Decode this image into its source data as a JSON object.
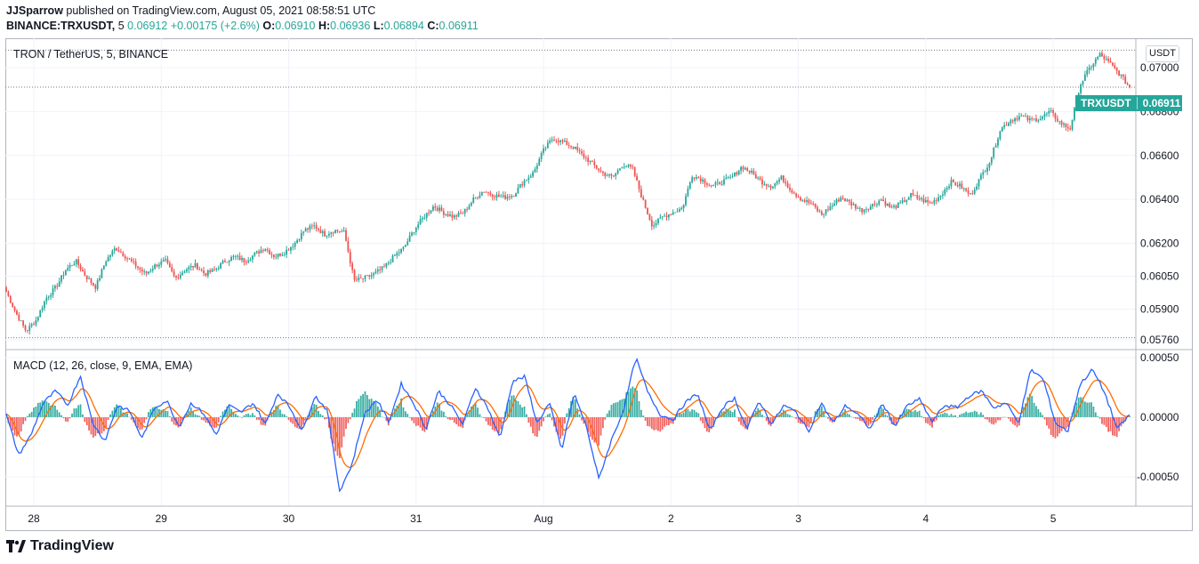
{
  "header": {
    "author": "JJSparrow",
    "published_text": "published on TradingView.com, August 05, 2021 08:58:51 UTC",
    "symbol": "BINANCE:TRXUSDT",
    "interval": "5",
    "last": "0.06912",
    "change": "+0.00175 (+2.6%)",
    "o_label": "O:",
    "o_value": "0.06910",
    "h_label": "H:",
    "h_value": "0.06936",
    "l_label": "L:",
    "l_value": "0.06894",
    "c_label": "C:",
    "c_value": "0.06911"
  },
  "brand": {
    "name": "TradingView",
    "icon": "tradingview-logo-icon"
  },
  "currency_button": "USDT",
  "price_tag": {
    "symbol": "TRXUSDT",
    "value": "0.06911"
  },
  "colors": {
    "up": "#26a69a",
    "down": "#ef5350",
    "macd": "#2962ff",
    "signal": "#ff6d00"
  },
  "chart_data": [
    {
      "type": "candlestick",
      "title": "TRON / TetherUS, 5, BINANCE",
      "y_ticks": [
        "0.07000",
        "0.06800",
        "0.06600",
        "0.06400",
        "0.06200",
        "0.06050",
        "0.05900",
        "0.05760"
      ],
      "y_tick_values": [
        0.07,
        0.068,
        0.066,
        0.064,
        0.062,
        0.0605,
        0.059,
        0.0576
      ],
      "ylim": [
        0.0572,
        0.0713
      ],
      "x_tick_labels": [
        "28",
        "29",
        "30",
        "31",
        "Aug",
        "2",
        "3",
        "4",
        "5"
      ],
      "x_tick_index": [
        13,
        73,
        133,
        193,
        253,
        313,
        373,
        433,
        493
      ],
      "reference_lines": [
        0.0708,
        0.06911,
        0.0577
      ],
      "close_path": [
        0.0598,
        0.0588,
        0.058,
        0.0585,
        0.0595,
        0.06,
        0.0608,
        0.0612,
        0.0605,
        0.06,
        0.0612,
        0.0618,
        0.0614,
        0.061,
        0.0606,
        0.061,
        0.0612,
        0.0604,
        0.0608,
        0.061,
        0.0606,
        0.0608,
        0.0612,
        0.0614,
        0.0612,
        0.0615,
        0.0618,
        0.0614,
        0.0616,
        0.062,
        0.0626,
        0.0628,
        0.0624,
        0.0626,
        0.0625,
        0.0603,
        0.0604,
        0.0606,
        0.0609,
        0.0614,
        0.0618,
        0.0626,
        0.0632,
        0.0637,
        0.0634,
        0.0632,
        0.0634,
        0.064,
        0.0644,
        0.0642,
        0.0641,
        0.0642,
        0.0648,
        0.0652,
        0.0662,
        0.0668,
        0.0666,
        0.0664,
        0.066,
        0.0656,
        0.0652,
        0.065,
        0.0656,
        0.0654,
        0.064,
        0.0628,
        0.0632,
        0.0634,
        0.0636,
        0.0651,
        0.0649,
        0.0646,
        0.0648,
        0.065,
        0.0655,
        0.0652,
        0.0648,
        0.0646,
        0.065,
        0.0644,
        0.064,
        0.0638,
        0.0633,
        0.0637,
        0.0641,
        0.0638,
        0.0635,
        0.0637,
        0.064,
        0.0636,
        0.0638,
        0.0642,
        0.064,
        0.0638,
        0.0642,
        0.0648,
        0.0646,
        0.0642,
        0.065,
        0.0658,
        0.0672,
        0.0676,
        0.0678,
        0.0676,
        0.0677,
        0.068,
        0.0675,
        0.0672,
        0.0692,
        0.07,
        0.0706,
        0.0702,
        0.0697,
        0.0691
      ]
    },
    {
      "type": "macd",
      "title": "MACD (12, 26, close, 9, EMA, EMA)",
      "series": [
        {
          "name": "MACD",
          "color": "#2962ff"
        },
        {
          "name": "Signal",
          "color": "#ff6d00"
        },
        {
          "name": "Histogram",
          "colors": [
            "#26a69a",
            "#ef5350"
          ]
        }
      ],
      "y_ticks": [
        "0.00050",
        "0.00000",
        "-0.00050"
      ],
      "y_tick_values": [
        0.0005,
        0.0,
        -0.0005
      ],
      "ylim": [
        -0.00074,
        0.00056
      ],
      "macd_path": [
        2e-05,
        -0.00032,
        -0.00015,
        0.00012,
        0.00022,
        0.0001,
        0.00035,
        -5e-05,
        -0.0002,
        0.0001,
        5e-05,
        -0.00018,
        8e-05,
        0.00014,
        -8e-05,
        0.00012,
        3e-05,
        -0.00015,
        0.0001,
        4e-05,
        0.00012,
        -6e-05,
        0.0002,
        8e-05,
        -0.00012,
        0.00018,
        6e-05,
        -0.00062,
        -0.0004,
        2e-05,
        0.00015,
        -4e-05,
        0.00028,
        0.00012,
        -0.0001,
        0.00022,
        0.0001,
        -6e-05,
        0.00025,
        8e-05,
        -0.00018,
        0.0003,
        0.00034,
        -5e-05,
        0.00012,
        -0.00028,
        0.0002,
        -8e-05,
        -0.00052,
        -0.0002,
        6e-05,
        0.0005,
        0.0002,
        2e-05,
        -2e-05,
        0.00012,
        0.0002,
        -0.00012,
        8e-05,
        0.00016,
        -0.0001,
        0.00014,
        -6e-05,
        0.0001,
        4e-05,
        -0.00012,
        0.00012,
        -5e-05,
        0.0001,
        2e-05,
        -0.0001,
        0.00012,
        -8e-05,
        0.0001,
        0.00015,
        -4e-05,
        0.0001,
        8e-05,
        0.00018,
        0.00022,
        8e-05,
        0.00012,
        -5e-05,
        0.0004,
        0.00032,
        -5e-05,
        -0.00012,
        0.00028,
        0.0004,
        0.0002,
        -0.0001,
        2e-05
      ]
    }
  ]
}
